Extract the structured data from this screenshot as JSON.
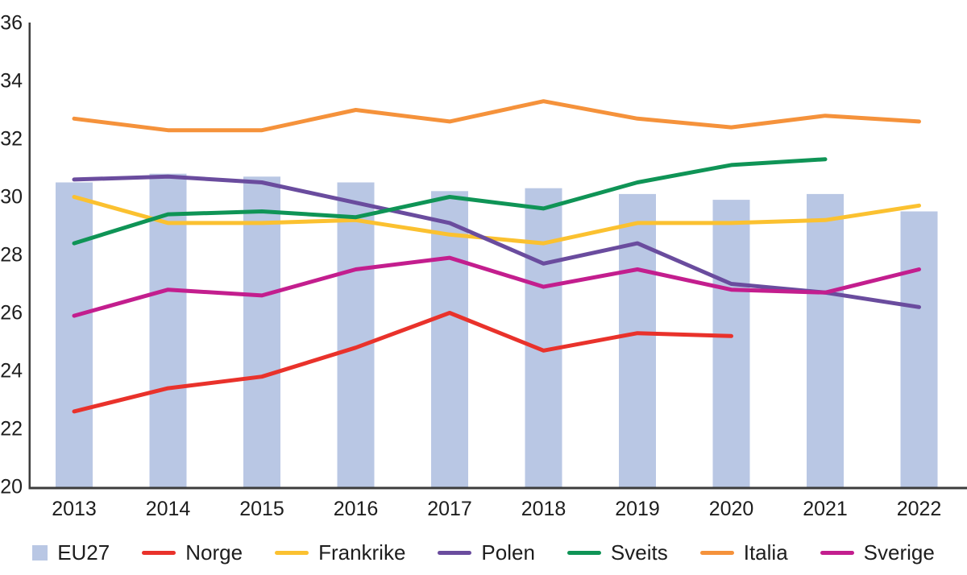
{
  "chart_data": {
    "type": "bar",
    "subtype": "bar-line-combo",
    "title": "",
    "xlabel": "",
    "ylabel": "",
    "categories": [
      "2013",
      "2014",
      "2015",
      "2016",
      "2017",
      "2018",
      "2019",
      "2020",
      "2021",
      "2022"
    ],
    "axis": {
      "y_min": 20,
      "y_max": 36,
      "y_step": 2,
      "y_ticks": [
        "20",
        "22",
        "24",
        "26",
        "28",
        "30",
        "32",
        "34",
        "36"
      ],
      "grid": false,
      "axis_color": "#3c3c3c"
    },
    "legend_position": "bottom",
    "series": [
      {
        "name": "EU27",
        "type": "bar",
        "color": "#b9c7e4",
        "values": [
          30.5,
          30.8,
          30.7,
          30.5,
          30.2,
          30.3,
          30.1,
          29.9,
          30.1,
          29.5
        ]
      },
      {
        "name": "Norge",
        "type": "line",
        "color": "#e9322b",
        "values": [
          22.6,
          23.4,
          23.8,
          24.8,
          26.0,
          24.7,
          25.3,
          25.2,
          null,
          null
        ]
      },
      {
        "name": "Frankrike",
        "type": "line",
        "color": "#fbc130",
        "values": [
          30.0,
          29.1,
          29.1,
          29.2,
          28.7,
          28.4,
          29.1,
          29.1,
          29.2,
          29.7
        ]
      },
      {
        "name": "Polen",
        "type": "line",
        "color": "#6a4c9e",
        "values": [
          30.6,
          30.7,
          30.5,
          29.8,
          29.1,
          27.7,
          28.4,
          27.0,
          26.7,
          26.2
        ]
      },
      {
        "name": "Sveits",
        "type": "line",
        "color": "#0f9456",
        "values": [
          28.4,
          29.4,
          29.5,
          29.3,
          30.0,
          29.6,
          30.5,
          31.1,
          31.3,
          null
        ]
      },
      {
        "name": "Italia",
        "type": "line",
        "color": "#f5923b",
        "values": [
          32.7,
          32.3,
          32.3,
          33.0,
          32.6,
          33.3,
          32.7,
          32.4,
          32.8,
          32.6
        ]
      },
      {
        "name": "Sverige",
        "type": "line",
        "color": "#c31e8e",
        "values": [
          25.9,
          26.8,
          26.6,
          27.5,
          27.9,
          26.9,
          27.5,
          26.8,
          26.7,
          27.5
        ]
      }
    ]
  }
}
